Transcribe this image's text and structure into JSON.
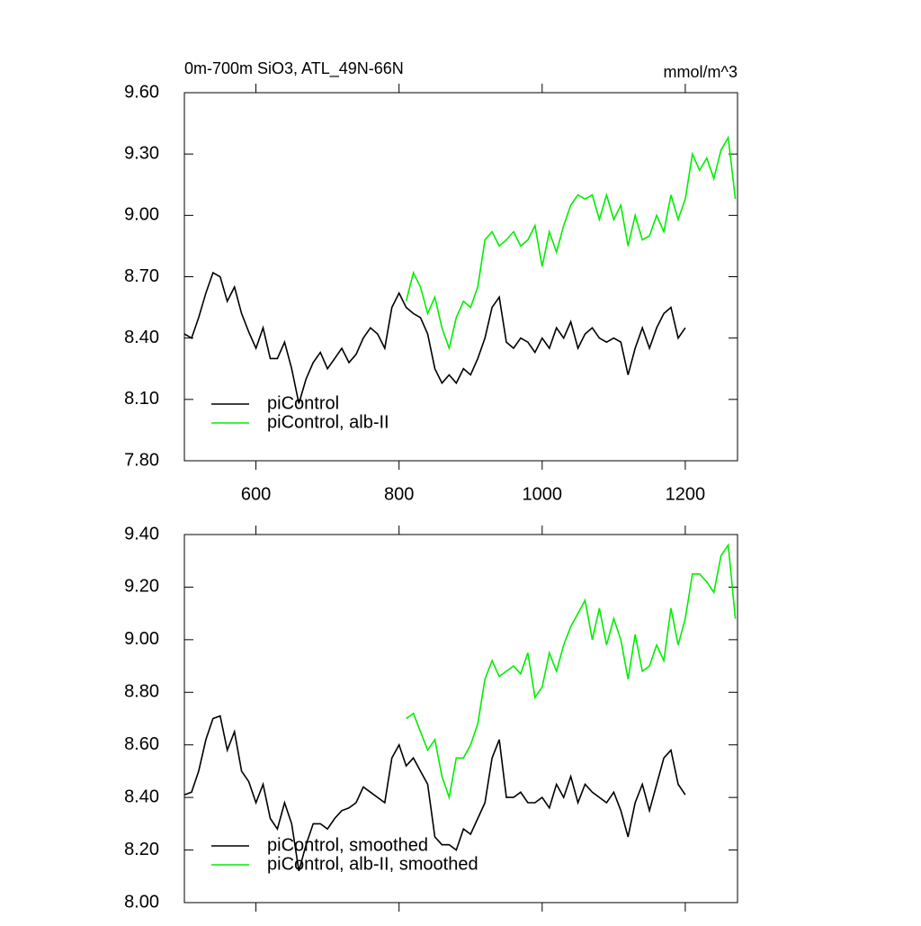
{
  "chart_data": [
    {
      "type": "line",
      "title": "0m-700m SiO3, ATL_49N-66N",
      "units": "mmol/m^3",
      "x": [
        500,
        510,
        520,
        530,
        540,
        550,
        560,
        570,
        580,
        590,
        600,
        610,
        620,
        630,
        640,
        650,
        660,
        670,
        680,
        690,
        700,
        710,
        720,
        730,
        740,
        750,
        760,
        770,
        780,
        790,
        800,
        810,
        820,
        830,
        840,
        850,
        860,
        870,
        880,
        890,
        900,
        910,
        920,
        930,
        940,
        950,
        960,
        970,
        980,
        990,
        1000,
        1010,
        1020,
        1030,
        1040,
        1050,
        1060,
        1070,
        1080,
        1090,
        1100,
        1110,
        1120,
        1130,
        1140,
        1150,
        1160,
        1170,
        1180,
        1190,
        1200,
        1210,
        1220,
        1230,
        1240,
        1250,
        1260,
        1270
      ],
      "series": [
        {
          "name": "piControl",
          "color": "#000000",
          "values": [
            8.42,
            8.4,
            8.5,
            8.62,
            8.72,
            8.7,
            8.58,
            8.65,
            8.52,
            8.43,
            8.35,
            8.45,
            8.3,
            8.3,
            8.38,
            8.25,
            8.08,
            8.2,
            8.28,
            8.33,
            8.25,
            8.3,
            8.35,
            8.28,
            8.32,
            8.4,
            8.45,
            8.42,
            8.35,
            8.55,
            8.62,
            8.55,
            8.52,
            8.5,
            8.42,
            8.25,
            8.18,
            8.22,
            8.18,
            8.25,
            8.22,
            8.3,
            8.4,
            8.55,
            8.6,
            8.38,
            8.35,
            8.4,
            8.38,
            8.33,
            8.4,
            8.35,
            8.45,
            8.4,
            8.48,
            8.35,
            8.42,
            8.45,
            8.4,
            8.38,
            8.4,
            8.38,
            8.22,
            8.35,
            8.45,
            8.35,
            8.45,
            8.52,
            8.55,
            8.4,
            8.45,
            null,
            null,
            null,
            null,
            null,
            null,
            null
          ]
        },
        {
          "name": "piControl, alb-II",
          "color": "#00ee00",
          "values": [
            null,
            null,
            null,
            null,
            null,
            null,
            null,
            null,
            null,
            null,
            null,
            null,
            null,
            null,
            null,
            null,
            null,
            null,
            null,
            null,
            null,
            null,
            null,
            null,
            null,
            null,
            null,
            null,
            null,
            null,
            null,
            8.58,
            8.72,
            8.65,
            8.52,
            8.6,
            8.45,
            8.35,
            8.5,
            8.58,
            8.55,
            8.65,
            8.88,
            8.92,
            8.85,
            8.88,
            8.92,
            8.85,
            8.88,
            8.95,
            8.75,
            8.92,
            8.82,
            8.95,
            9.05,
            9.1,
            9.08,
            9.1,
            8.98,
            9.1,
            8.98,
            9.05,
            8.85,
            9.0,
            8.88,
            8.9,
            9.0,
            8.92,
            9.1,
            8.98,
            9.08,
            9.3,
            9.22,
            9.28,
            9.18,
            9.32,
            9.38,
            9.08
          ]
        }
      ],
      "xlim": [
        500,
        1273
      ],
      "xticks": [
        600,
        800,
        1000,
        1200
      ],
      "xtick_labels": true,
      "ylim": [
        7.8,
        9.6
      ],
      "yticks": [
        {
          "value": 7.8,
          "label": "7.80"
        },
        {
          "value": 8.1,
          "label": "8.10"
        },
        {
          "value": 8.4,
          "label": "8.40"
        },
        {
          "value": 8.7,
          "label": "8.70"
        },
        {
          "value": 9.0,
          "label": "9.00"
        },
        {
          "value": 9.3,
          "label": "9.30"
        },
        {
          "value": 9.6,
          "label": "9.60"
        }
      ],
      "legend": "lower left"
    },
    {
      "type": "line",
      "x": [
        500,
        510,
        520,
        530,
        540,
        550,
        560,
        570,
        580,
        590,
        600,
        610,
        620,
        630,
        640,
        650,
        660,
        670,
        680,
        690,
        700,
        710,
        720,
        730,
        740,
        750,
        760,
        770,
        780,
        790,
        800,
        810,
        820,
        830,
        840,
        850,
        860,
        870,
        880,
        890,
        900,
        910,
        920,
        930,
        940,
        950,
        960,
        970,
        980,
        990,
        1000,
        1010,
        1020,
        1030,
        1040,
        1050,
        1060,
        1070,
        1080,
        1090,
        1100,
        1110,
        1120,
        1130,
        1140,
        1150,
        1160,
        1170,
        1180,
        1190,
        1200,
        1210,
        1220,
        1230,
        1240,
        1250,
        1260,
        1270
      ],
      "series": [
        {
          "name": "piControl, smoothed",
          "color": "#000000",
          "values": [
            8.41,
            8.42,
            8.5,
            8.62,
            8.7,
            8.71,
            8.58,
            8.65,
            8.5,
            8.46,
            8.38,
            8.45,
            8.32,
            8.28,
            8.38,
            8.3,
            8.12,
            8.22,
            8.3,
            8.3,
            8.28,
            8.32,
            8.35,
            8.36,
            8.38,
            8.44,
            8.42,
            8.4,
            8.38,
            8.55,
            8.6,
            8.52,
            8.55,
            8.5,
            8.45,
            8.25,
            8.22,
            8.22,
            8.2,
            8.28,
            8.26,
            8.32,
            8.38,
            8.55,
            8.62,
            8.4,
            8.4,
            8.42,
            8.38,
            8.38,
            8.4,
            8.36,
            8.45,
            8.4,
            8.48,
            8.38,
            8.45,
            8.42,
            8.4,
            8.38,
            8.42,
            8.35,
            8.25,
            8.38,
            8.45,
            8.35,
            8.45,
            8.55,
            8.58,
            8.45,
            8.41,
            null,
            null,
            null,
            null,
            null,
            null,
            null
          ]
        },
        {
          "name": "piControl, alb-II, smoothed",
          "color": "#00ee00",
          "values": [
            null,
            null,
            null,
            null,
            null,
            null,
            null,
            null,
            null,
            null,
            null,
            null,
            null,
            null,
            null,
            null,
            null,
            null,
            null,
            null,
            null,
            null,
            null,
            null,
            null,
            null,
            null,
            null,
            null,
            null,
            null,
            8.7,
            8.72,
            8.65,
            8.58,
            8.62,
            8.48,
            8.4,
            8.55,
            8.55,
            8.6,
            8.68,
            8.85,
            8.92,
            8.86,
            8.88,
            8.9,
            8.87,
            8.95,
            8.78,
            8.82,
            8.95,
            8.88,
            8.98,
            9.05,
            9.1,
            9.15,
            9.0,
            9.12,
            8.98,
            9.08,
            9.0,
            8.85,
            9.02,
            8.88,
            8.9,
            8.98,
            8.92,
            9.12,
            8.98,
            9.08,
            9.25,
            9.25,
            9.22,
            9.18,
            9.32,
            9.36,
            9.08
          ]
        }
      ],
      "xlim": [
        500,
        1273
      ],
      "xticks": [
        600,
        800,
        1000,
        1200
      ],
      "xtick_labels": false,
      "ylim": [
        8.0,
        9.4
      ],
      "yticks": [
        {
          "value": 8.0,
          "label": "8.00"
        },
        {
          "value": 8.2,
          "label": "8.20"
        },
        {
          "value": 8.4,
          "label": "8.40"
        },
        {
          "value": 8.6,
          "label": "8.60"
        },
        {
          "value": 8.8,
          "label": "8.80"
        },
        {
          "value": 9.0,
          "label": "9.00"
        },
        {
          "value": 9.2,
          "label": "9.20"
        },
        {
          "value": 9.4,
          "label": "9.40"
        }
      ],
      "legend": "lower left"
    }
  ]
}
